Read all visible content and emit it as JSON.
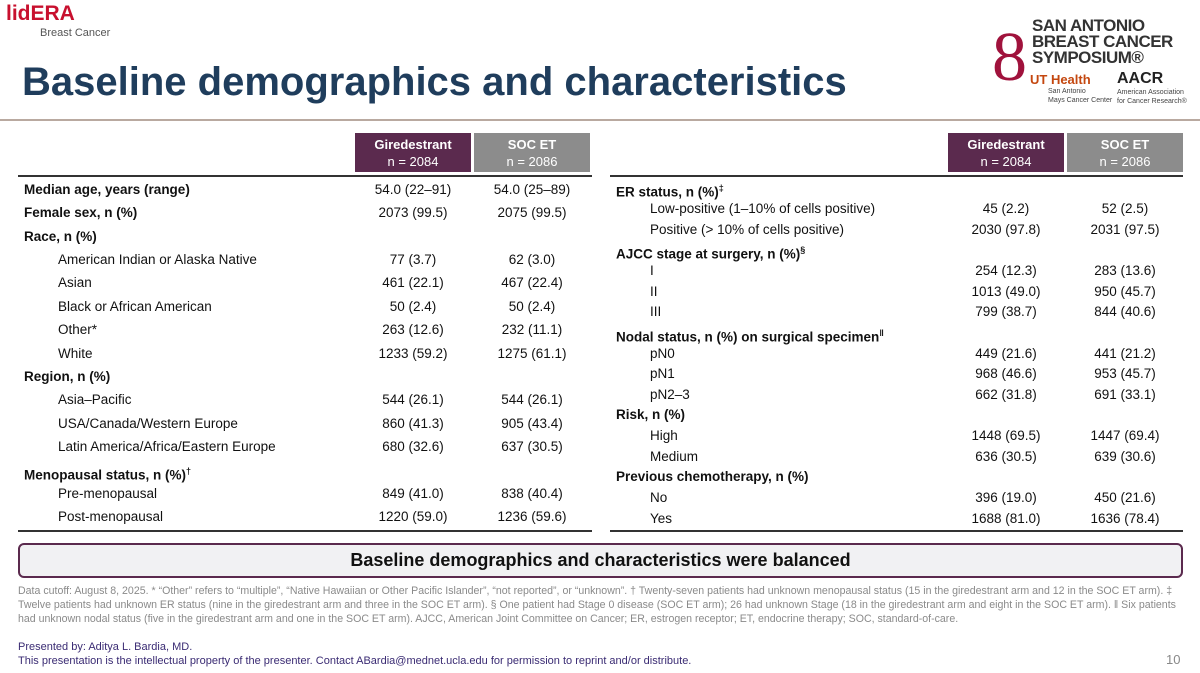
{
  "header": {
    "logo": "lidERA",
    "logo_sub": "Breast Cancer",
    "title": "Baseline demographics and characteristics",
    "sabcs": [
      "SAN ANTONIO",
      "BREAST CANCER",
      "SYMPOSIUM®"
    ],
    "ut": "UT Health",
    "ut_sub": [
      "San Antonio",
      "Mays Cancer Center"
    ],
    "aacr": "AACR",
    "aacr_sub": [
      "American Association",
      "for Cancer Research®"
    ]
  },
  "left_table": {
    "columns": [
      [
        "Giredestrant",
        "n = 2084"
      ],
      [
        "SOC ET",
        "n = 2086"
      ]
    ],
    "groups": [
      {
        "label": "Median age, years (range)",
        "values": [
          "54.0 (22–91)",
          "54.0 (25–89)"
        ]
      },
      {
        "label": "Female sex, n (%)",
        "values": [
          "2073 (99.5)",
          "2075 (99.5)"
        ]
      },
      {
        "label": "Race, n (%)",
        "rows": [
          {
            "label": "American Indian or Alaska Native",
            "values": [
              "77 (3.7)",
              "62 (3.0)"
            ]
          },
          {
            "label": "Asian",
            "values": [
              "461 (22.1)",
              "467 (22.4)"
            ]
          },
          {
            "label": "Black or African American",
            "values": [
              "50 (2.4)",
              "50 (2.4)"
            ]
          },
          {
            "label": "Other*",
            "values": [
              "263 (12.6)",
              "232 (11.1)"
            ]
          },
          {
            "label": "White",
            "values": [
              "1233 (59.2)",
              "1275 (61.1)"
            ]
          }
        ]
      },
      {
        "label": "Region, n (%)",
        "rows": [
          {
            "label": "Asia–Pacific",
            "values": [
              "544 (26.1)",
              "544 (26.1)"
            ]
          },
          {
            "label": "USA/Canada/Western Europe",
            "values": [
              "860 (41.3)",
              "905 (43.4)"
            ]
          },
          {
            "label": "Latin America/Africa/Eastern Europe",
            "values": [
              "680 (32.6)",
              "637 (30.5)"
            ]
          }
        ]
      },
      {
        "label": "Menopausal status, n (%)",
        "sup": "†",
        "rows": [
          {
            "label": "Pre-menopausal",
            "values": [
              "849 (41.0)",
              "838 (40.4)"
            ]
          },
          {
            "label": "Post-menopausal",
            "values": [
              "1220 (59.0)",
              "1236 (59.6)"
            ]
          }
        ]
      }
    ]
  },
  "right_table": {
    "columns": [
      [
        "Giredestrant",
        "n = 2084"
      ],
      [
        "SOC ET",
        "n = 2086"
      ]
    ],
    "groups": [
      {
        "label": "ER status, n (%)",
        "sup": "‡",
        "rows": [
          {
            "label": "Low-positive (1–10% of cells positive)",
            "values": [
              "45 (2.2)",
              "52 (2.5)"
            ]
          },
          {
            "label": "Positive (> 10% of cells positive)",
            "values": [
              "2030 (97.8)",
              "2031 (97.5)"
            ]
          }
        ]
      },
      {
        "label": "AJCC stage at surgery, n (%)",
        "sup": "§",
        "rows": [
          {
            "label": "I",
            "values": [
              "254 (12.3)",
              "283 (13.6)"
            ]
          },
          {
            "label": "II",
            "values": [
              "1013 (49.0)",
              "950 (45.7)"
            ]
          },
          {
            "label": "III",
            "values": [
              "799 (38.7)",
              "844 (40.6)"
            ]
          }
        ]
      },
      {
        "label": "Nodal status, n (%) on surgical specimen",
        "sup": "‖",
        "rows": [
          {
            "label": "pN0",
            "values": [
              "449 (21.6)",
              "441 (21.2)"
            ]
          },
          {
            "label": "pN1",
            "values": [
              "968 (46.6)",
              "953 (45.7)"
            ]
          },
          {
            "label": "pN2–3",
            "values": [
              "662 (31.8)",
              "691 (33.1)"
            ]
          }
        ]
      },
      {
        "label": "Risk, n (%)",
        "rows": [
          {
            "label": "High",
            "values": [
              "1448 (69.5)",
              "1447 (69.4)"
            ]
          },
          {
            "label": "Medium",
            "values": [
              "636 (30.5)",
              "639 (30.6)"
            ]
          }
        ]
      },
      {
        "label": "Previous chemotherapy, n (%)",
        "rows": [
          {
            "label": "No",
            "values": [
              "396 (19.0)",
              "450 (21.6)"
            ]
          },
          {
            "label": "Yes",
            "values": [
              "1688 (81.0)",
              "1636 (78.4)"
            ]
          }
        ]
      }
    ]
  },
  "banner": "Baseline demographics and characteristics were balanced",
  "footnote": "Data cutoff: August 8, 2025. * “Other” refers to “multiple”, “Native Hawaiian or Other Pacific Islander”, “not reported”, or “unknown”. † Twenty-seven patients had unknown menopausal status (15 in the giredestrant arm and 12 in the SOC ET arm). ‡ Twelve patients had unknown ER status (nine in the giredestrant arm and three in the SOC ET arm). § One patient had Stage 0 disease (SOC ET arm); 26 had unknown Stage (18 in the giredestrant arm and eight in the SOC ET arm). ‖ Six patients had unknown nodal status (five in the giredestrant arm and one in the SOC ET arm). AJCC, American Joint Committee on Cancer; ER, estrogen receptor; ET, endocrine therapy; SOC, standard-of-care.",
  "presenter": "Presented by: Aditya L. Bardia, MD.",
  "property": "This presentation is the intellectual property of the presenter. Contact ABardia@mednet.ucla.edu for permission to reprint and/or distribute.",
  "page": "10"
}
